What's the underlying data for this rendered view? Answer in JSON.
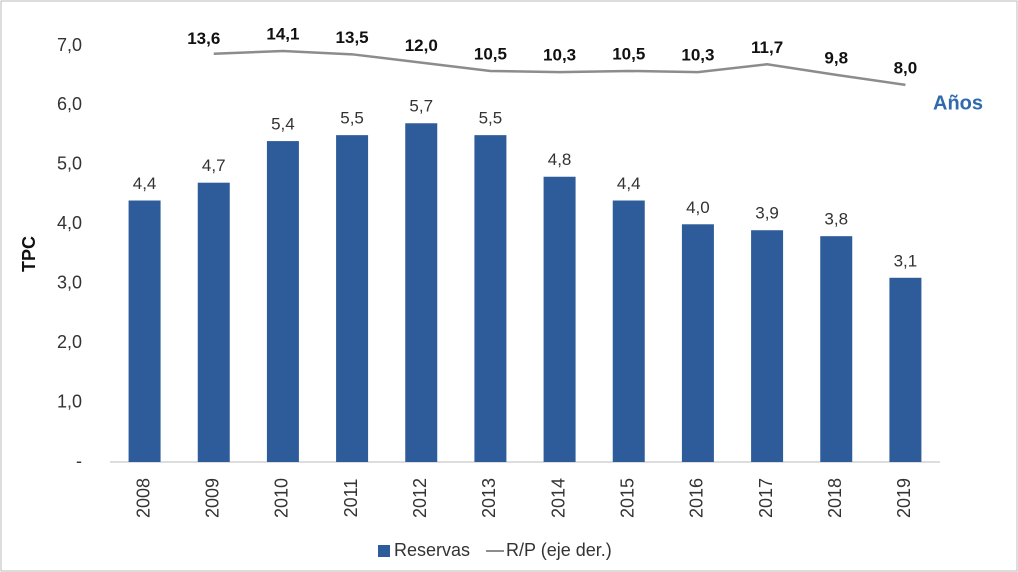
{
  "chart_data": {
    "type": "bar_line",
    "y_label": "TPC",
    "annotation": "Años",
    "categories": [
      "2008",
      "2009",
      "2010",
      "2011",
      "2012",
      "2013",
      "2014",
      "2015",
      "2016",
      "2017",
      "2018",
      "2019"
    ],
    "series": [
      {
        "name": "Reservas",
        "type": "bar",
        "color": "#2e5c9a",
        "values": [
          4.4,
          4.7,
          5.4,
          5.5,
          5.7,
          5.5,
          4.8,
          4.4,
          4.0,
          3.9,
          3.8,
          3.1
        ],
        "value_labels": [
          "4,4",
          "4,7",
          "5,4",
          "5,5",
          "5,7",
          "5,5",
          "4,8",
          "4,4",
          "4,0",
          "3,9",
          "3,8",
          "3,1"
        ]
      },
      {
        "name": "R/P (eje der.)",
        "type": "line",
        "color": "#8c8c8c",
        "axis": "y2",
        "values": [
          null,
          13.6,
          14.1,
          13.5,
          12.0,
          10.5,
          10.3,
          10.5,
          10.3,
          11.7,
          9.8,
          8.0
        ],
        "value_labels": [
          null,
          "13,6",
          "14,1",
          "13,5",
          "12,0",
          "10,5",
          "10,3",
          "10,5",
          "10,3",
          "11,7",
          "9,8",
          "8,0"
        ]
      }
    ],
    "ylim": [
      0,
      7
    ],
    "yticks": [
      {
        "value": 0,
        "label": "-"
      },
      {
        "value": 1,
        "label": "1,0"
      },
      {
        "value": 2,
        "label": "2,0"
      },
      {
        "value": 3,
        "label": "3,0"
      },
      {
        "value": 4,
        "label": "4,0"
      },
      {
        "value": 5,
        "label": "5,0"
      },
      {
        "value": 6,
        "label": "6,0"
      },
      {
        "value": 7,
        "label": "7,0"
      }
    ],
    "y2lim": [
      -60,
      15
    ],
    "grid": false,
    "legend": "bottom"
  }
}
